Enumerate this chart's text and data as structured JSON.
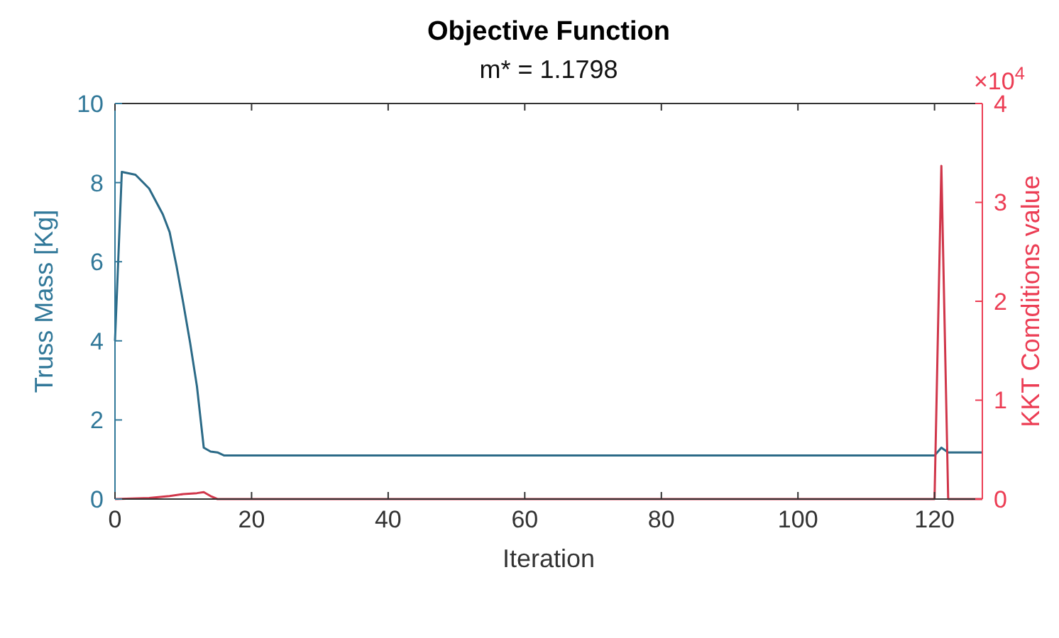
{
  "chart_data": {
    "type": "line",
    "title": "Objective Function",
    "subtitle": "m* = 1.1798",
    "xlabel": "Iteration",
    "ylabel": "Truss Mass [Kg]",
    "y2label": "KKT Comditions value",
    "annotations": [
      "×10$^{4}$"
    ],
    "xlim": [
      0,
      127
    ],
    "xticks": [
      0,
      20,
      40,
      60,
      80,
      100,
      120
    ],
    "ylim": [
      0,
      10
    ],
    "yticks": [
      0,
      2,
      4,
      6,
      8,
      10
    ],
    "y2lim": [
      0,
      4
    ],
    "y2ticks": [
      0,
      1,
      2,
      3,
      4
    ],
    "grid": false,
    "line_style": "solid",
    "marker": "none",
    "series": [
      {
        "color": "#2b6a87",
        "x": [
          0,
          1,
          3,
          5,
          7,
          8,
          9,
          10,
          11,
          12,
          13,
          14,
          15,
          16,
          120,
          121,
          122,
          127
        ],
        "values": [
          4.0,
          8.27,
          8.2,
          7.85,
          7.2,
          6.75,
          5.9,
          4.95,
          3.95,
          2.85,
          1.3,
          1.2,
          1.18,
          1.1,
          1.1,
          1.3,
          1.18,
          1.18
        ]
      },
      {
        "color": "#d0364a",
        "axis": "y2",
        "x": [
          0,
          5,
          8,
          10,
          12,
          13,
          14,
          15,
          120,
          121,
          122,
          127
        ],
        "values": [
          0,
          0.01,
          0.03,
          0.05,
          0.06,
          0.07,
          0.03,
          0,
          0,
          3.37,
          0,
          0
        ]
      }
    ]
  }
}
